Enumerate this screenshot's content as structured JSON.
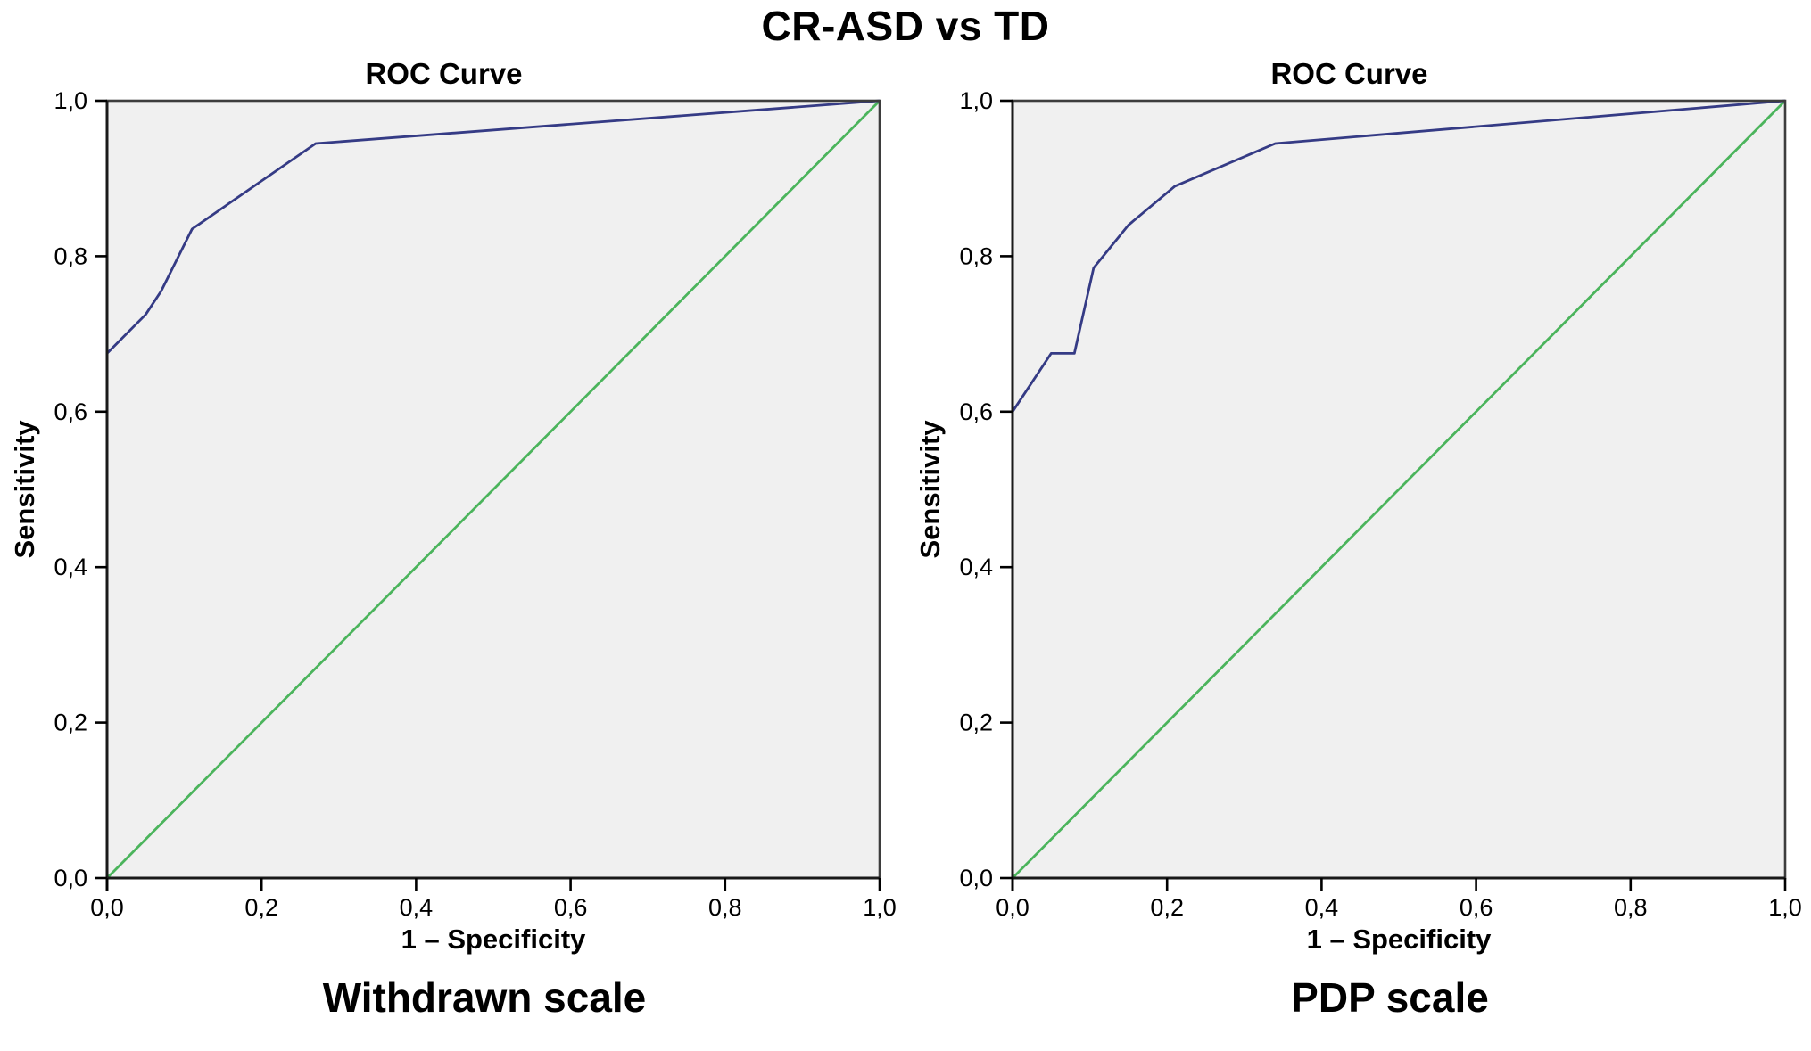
{
  "page": {
    "main_title": "CR-ASD vs TD"
  },
  "chart_data": [
    {
      "type": "line",
      "title": "ROC Curve",
      "caption": "Withdrawn scale",
      "xlabel": "1 – Specificity",
      "ylabel": "Sensitivity",
      "xlim": [
        0,
        1
      ],
      "ylim": [
        0,
        1
      ],
      "grid": false,
      "legend": "none",
      "plot_bg": "#f0f0f0",
      "x_tick_values": [
        0,
        0.2,
        0.4,
        0.6,
        0.8,
        1
      ],
      "x_tick_labels": [
        "0,0",
        "0,2",
        "0,4",
        "0,6",
        "0,8",
        "1,0"
      ],
      "y_tick_values": [
        0,
        0.2,
        0.4,
        0.6,
        0.8,
        1
      ],
      "y_tick_labels": [
        "0,0",
        "0,2",
        "0,4",
        "0,6",
        "0,8",
        "1,0"
      ],
      "series": [
        {
          "name": "ROC curve",
          "color": "#353b85",
          "points": [
            [
              0,
              0.675
            ],
            [
              0.05,
              0.725
            ],
            [
              0.07,
              0.755
            ],
            [
              0.11,
              0.835
            ],
            [
              0.27,
              0.945
            ],
            [
              1,
              1
            ]
          ]
        },
        {
          "name": "Reference diagonal",
          "color": "#4bb45c",
          "points": [
            [
              0,
              0
            ],
            [
              1,
              1
            ]
          ]
        }
      ]
    },
    {
      "type": "line",
      "title": "ROC Curve",
      "caption": "PDP scale",
      "xlabel": "1 – Specificity",
      "ylabel": "Sensitivity",
      "xlim": [
        0,
        1
      ],
      "ylim": [
        0,
        1
      ],
      "grid": false,
      "legend": "none",
      "plot_bg": "#f0f0f0",
      "x_tick_values": [
        0,
        0.2,
        0.4,
        0.6,
        0.8,
        1
      ],
      "x_tick_labels": [
        "0,0",
        "0,2",
        "0,4",
        "0,6",
        "0,8",
        "1,0"
      ],
      "y_tick_values": [
        0,
        0.2,
        0.4,
        0.6,
        0.8,
        1
      ],
      "y_tick_labels": [
        "0,0",
        "0,2",
        "0,4",
        "0,6",
        "0,8",
        "1,0"
      ],
      "series": [
        {
          "name": "ROC curve",
          "color": "#353b85",
          "points": [
            [
              0,
              0.6
            ],
            [
              0.05,
              0.675
            ],
            [
              0.08,
              0.675
            ],
            [
              0.105,
              0.785
            ],
            [
              0.15,
              0.84
            ],
            [
              0.21,
              0.89
            ],
            [
              0.34,
              0.945
            ],
            [
              1,
              1
            ]
          ]
        },
        {
          "name": "Reference diagonal",
          "color": "#4bb45c",
          "points": [
            [
              0,
              0
            ],
            [
              1,
              1
            ]
          ]
        }
      ]
    }
  ]
}
